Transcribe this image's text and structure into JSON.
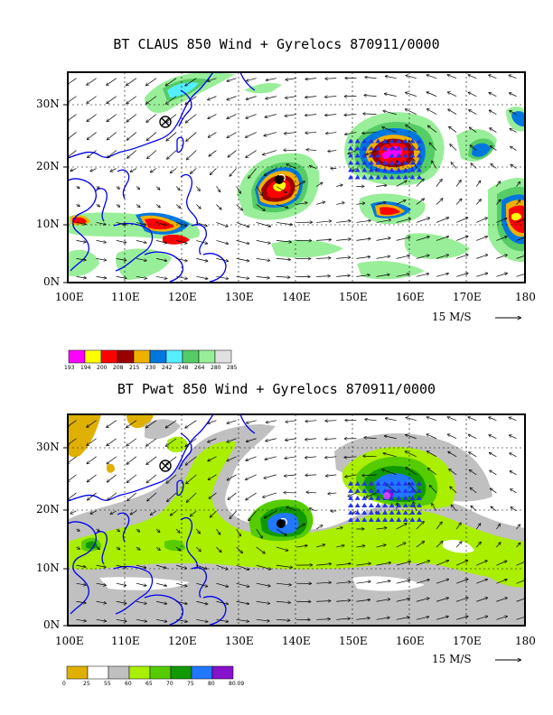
{
  "panels": [
    {
      "id": "claus",
      "title": "BT CLAUS 850 Wind + Gyrelocs 870911/0000",
      "lat_ticks": [
        "30N",
        "20N",
        "10N",
        "0N"
      ],
      "lon_ticks": [
        "100E",
        "110E",
        "120E",
        "130E",
        "140E",
        "150E",
        "160E",
        "170E",
        "180"
      ],
      "ref_vector_label": "15 M/S",
      "colorbar": {
        "colors": [
          "#ff00ff",
          "#ffff00",
          "#ff0000",
          "#990000",
          "#f0b000",
          "#0077dd",
          "#55eeff",
          "#55cc66",
          "#99ee99",
          "#e0e0e0"
        ],
        "labels": [
          "193",
          "194",
          "200",
          "208",
          "215",
          "230",
          "242",
          "248",
          "264",
          "280",
          "285"
        ]
      }
    },
    {
      "id": "pwat",
      "title": "BT Pwat 850 Wind + Gyrelocs 870911/0000",
      "lat_ticks": [
        "30N",
        "20N",
        "10N",
        "0N"
      ],
      "lon_ticks": [
        "100E",
        "110E",
        "120E",
        "130E",
        "140E",
        "150E",
        "160E",
        "170E",
        "180"
      ],
      "ref_vector_label": "15 M/S",
      "colorbar": {
        "colors": [
          "#e0b000",
          "#ffffff",
          "#c0c0c0",
          "#aaee00",
          "#55cc00",
          "#119900",
          "#2277ff",
          "#8811cc"
        ],
        "labels": [
          "0",
          "25",
          "55",
          "60",
          "65",
          "70",
          "75",
          "80",
          "80.09"
        ]
      }
    }
  ],
  "map_extent": {
    "lon": [
      100,
      180
    ],
    "lat": [
      0,
      35
    ]
  },
  "storms": [
    {
      "name": "west-storm",
      "lon": 137.5,
      "lat": 17.5
    },
    {
      "name": "east-storm",
      "lon": 156,
      "lat": 21
    }
  ],
  "marker": {
    "name": "gyre-center-marker",
    "lon": 118,
    "lat": 27.5
  }
}
